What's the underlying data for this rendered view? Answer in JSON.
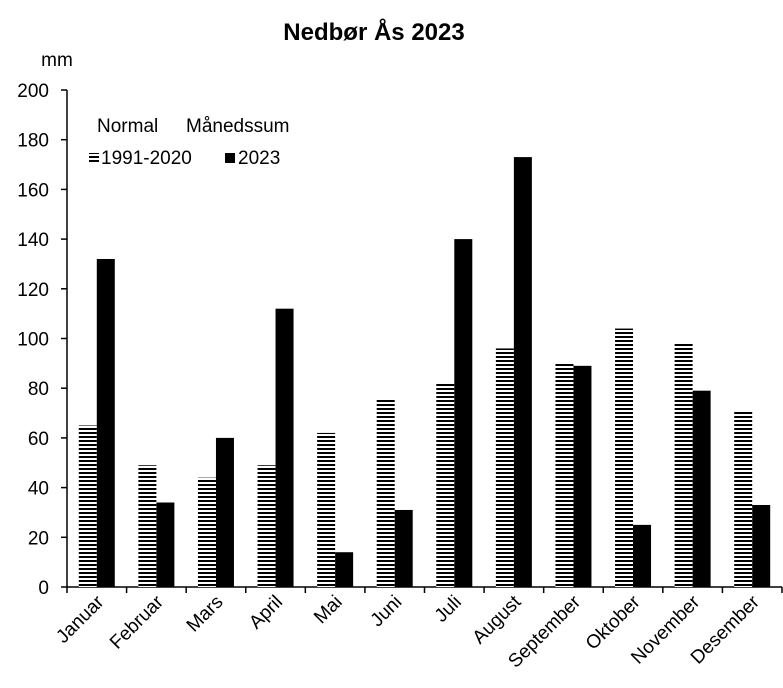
{
  "chart_data": {
    "type": "bar",
    "title": "Nedbør Ås 2023",
    "ylabel": "mm",
    "xlabel": "",
    "ylim": [
      0,
      200
    ],
    "yticks": [
      0,
      20,
      40,
      60,
      80,
      100,
      120,
      140,
      160,
      180,
      200
    ],
    "grid": false,
    "legend_position": "top-left",
    "legend_headers": [
      "Normal",
      "Månedssum"
    ],
    "categories": [
      "Januar",
      "Februar",
      "Mars",
      "April",
      "Mai",
      "Juni",
      "Juli",
      "August",
      "September",
      "Oktober",
      "November",
      "Desember"
    ],
    "series": [
      {
        "name": "1991-2020",
        "pattern": "horizontal-lines",
        "color": "#000000",
        "values": [
          65,
          49,
          44,
          49,
          62,
          76,
          82,
          96,
          90,
          104,
          98,
          71
        ]
      },
      {
        "name": "2023",
        "pattern": "solid",
        "color": "#000000",
        "values": [
          132,
          34,
          60,
          112,
          14,
          31,
          140,
          173,
          89,
          25,
          79,
          33
        ]
      }
    ]
  }
}
